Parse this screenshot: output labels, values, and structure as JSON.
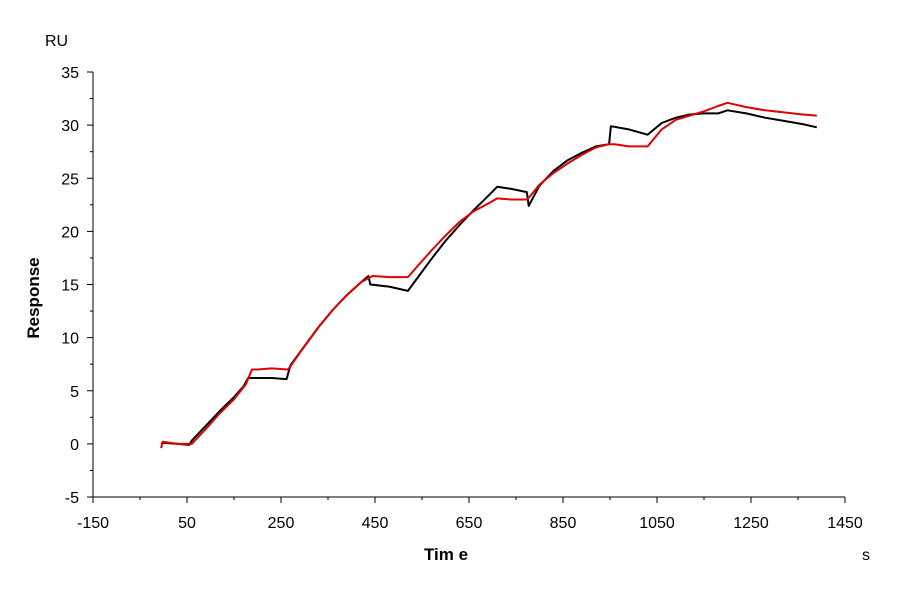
{
  "chart_data": {
    "type": "line",
    "title": "",
    "xlabel": "Tim e",
    "ylabel": "Response",
    "x_unit": "s",
    "y_unit": "RU",
    "xlim": [
      -150,
      1450
    ],
    "ylim": [
      -5,
      35
    ],
    "x_ticks": [
      -150,
      50,
      250,
      450,
      650,
      850,
      1050,
      1250,
      1450
    ],
    "y_ticks": [
      -5,
      0,
      5,
      10,
      15,
      20,
      25,
      30,
      35
    ],
    "grid": false,
    "legend": "none",
    "series": [
      {
        "color": "#000000",
        "points": [
          [
            -5,
            0
          ],
          [
            0,
            0.1
          ],
          [
            30,
            0
          ],
          [
            55,
            -0.1
          ],
          [
            60,
            0.3
          ],
          [
            90,
            1.7
          ],
          [
            120,
            3.1
          ],
          [
            150,
            4.4
          ],
          [
            170,
            5.4
          ],
          [
            180,
            6.2
          ],
          [
            185,
            6.2
          ],
          [
            230,
            6.2
          ],
          [
            262,
            6.1
          ],
          [
            270,
            7.4
          ],
          [
            300,
            9.2
          ],
          [
            330,
            11.0
          ],
          [
            360,
            12.6
          ],
          [
            390,
            14.0
          ],
          [
            420,
            15.2
          ],
          [
            436,
            15.8
          ],
          [
            440,
            15.0
          ],
          [
            480,
            14.8
          ],
          [
            520,
            14.4
          ],
          [
            540,
            15.6
          ],
          [
            570,
            17.4
          ],
          [
            600,
            19.1
          ],
          [
            630,
            20.6
          ],
          [
            660,
            22.0
          ],
          [
            690,
            23.3
          ],
          [
            710,
            24.2
          ],
          [
            740,
            24.0
          ],
          [
            773,
            23.7
          ],
          [
            777,
            22.4
          ],
          [
            800,
            24.3
          ],
          [
            830,
            25.7
          ],
          [
            860,
            26.7
          ],
          [
            890,
            27.4
          ],
          [
            920,
            28.0
          ],
          [
            948,
            28.2
          ],
          [
            952,
            29.9
          ],
          [
            990,
            29.6
          ],
          [
            1030,
            29.1
          ],
          [
            1060,
            30.2
          ],
          [
            1090,
            30.7
          ],
          [
            1120,
            31.0
          ],
          [
            1150,
            31.1
          ],
          [
            1180,
            31.1
          ],
          [
            1200,
            31.4
          ],
          [
            1240,
            31.1
          ],
          [
            1280,
            30.7
          ],
          [
            1320,
            30.4
          ],
          [
            1360,
            30.1
          ],
          [
            1390,
            29.8
          ]
        ]
      },
      {
        "color": "#e00000",
        "points": [
          [
            -5,
            -0.4
          ],
          [
            -2,
            0.2
          ],
          [
            30,
            0
          ],
          [
            55,
            0
          ],
          [
            60,
            0.0
          ],
          [
            90,
            1.4
          ],
          [
            120,
            2.9
          ],
          [
            150,
            4.2
          ],
          [
            175,
            5.6
          ],
          [
            188,
            7.0
          ],
          [
            200,
            7.0
          ],
          [
            230,
            7.1
          ],
          [
            265,
            7.0
          ],
          [
            270,
            7.3
          ],
          [
            300,
            9.2
          ],
          [
            330,
            11.0
          ],
          [
            360,
            12.6
          ],
          [
            390,
            14.0
          ],
          [
            420,
            15.2
          ],
          [
            436,
            15.6
          ],
          [
            445,
            15.8
          ],
          [
            480,
            15.7
          ],
          [
            520,
            15.7
          ],
          [
            540,
            16.7
          ],
          [
            570,
            18.2
          ],
          [
            600,
            19.6
          ],
          [
            630,
            20.9
          ],
          [
            660,
            21.9
          ],
          [
            690,
            22.6
          ],
          [
            710,
            23.1
          ],
          [
            740,
            23.0
          ],
          [
            773,
            23.0
          ],
          [
            780,
            23.3
          ],
          [
            800,
            24.4
          ],
          [
            830,
            25.5
          ],
          [
            860,
            26.4
          ],
          [
            890,
            27.2
          ],
          [
            920,
            27.9
          ],
          [
            948,
            28.2
          ],
          [
            960,
            28.2
          ],
          [
            990,
            28.0
          ],
          [
            1030,
            28.0
          ],
          [
            1060,
            29.6
          ],
          [
            1090,
            30.5
          ],
          [
            1120,
            30.9
          ],
          [
            1150,
            31.3
          ],
          [
            1180,
            31.8
          ],
          [
            1200,
            32.1
          ],
          [
            1240,
            31.7
          ],
          [
            1280,
            31.4
          ],
          [
            1320,
            31.2
          ],
          [
            1360,
            31.0
          ],
          [
            1390,
            30.9
          ]
        ]
      }
    ]
  }
}
